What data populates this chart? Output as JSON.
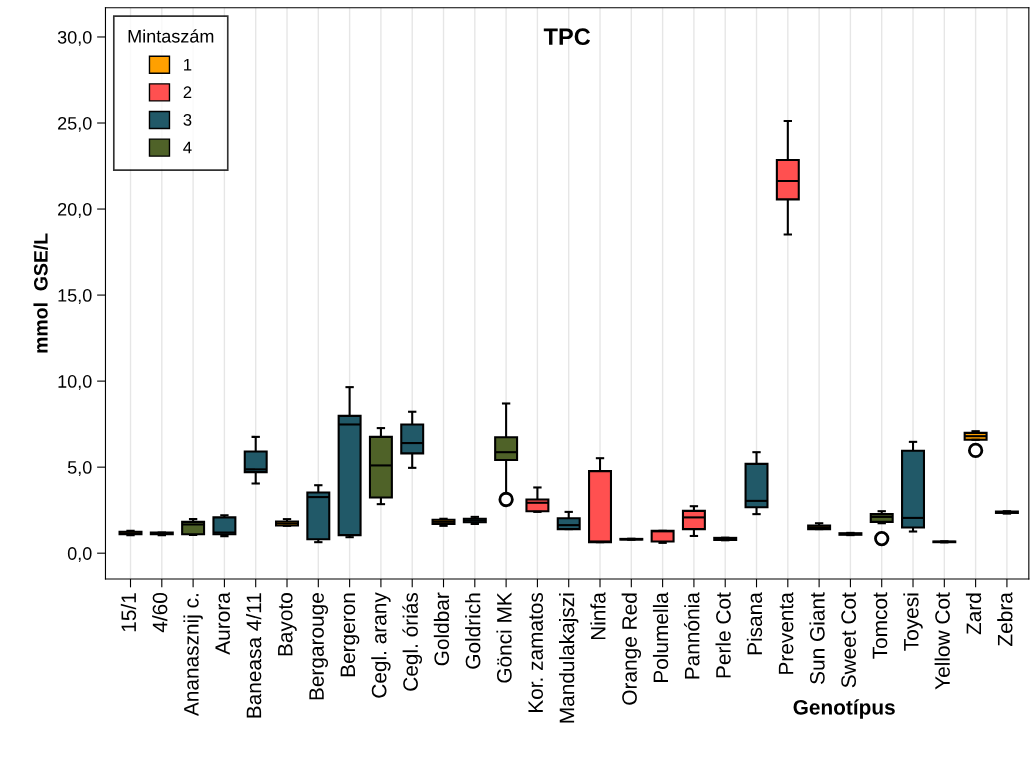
{
  "chart_data": {
    "type": "box",
    "title": "TPC",
    "xlabel": "Genotípus",
    "ylabel": "mmol  GSE/L",
    "legend_title": "Mintaszám",
    "legend": "top left",
    "grid": "x",
    "categories": [
      "15/1",
      "4/60",
      "Ananasznij c.",
      "Aurora",
      "Baneasa 4/11",
      "Bayoto",
      "Bergarouge",
      "Bergeron",
      "Cegl. arany",
      "Cegl. óriás",
      "Goldbar",
      "Goldrich",
      "Gönci MK",
      "Kor. zamatos",
      "Mandulakajszi",
      "Ninfa",
      "Orange Red",
      "Polumella",
      "Pannónia",
      "Perle Cot",
      "Pisana",
      "Preventa",
      "Sun Giant",
      "Sweet Cot",
      "Tomcot",
      "Toyesi",
      "Yellow Cot",
      "Zard",
      "Zebra"
    ],
    "ylim": [
      -1.5,
      31.7
    ],
    "yticks": [
      {
        "value": 0,
        "label": "0,0"
      },
      {
        "value": 5,
        "label": "5,0"
      },
      {
        "value": 10,
        "label": "10,0"
      },
      {
        "value": 15,
        "label": "15,0"
      },
      {
        "value": 20,
        "label": "20,0"
      },
      {
        "value": 25,
        "label": "25,0"
      },
      {
        "value": 30,
        "label": "30,0"
      }
    ],
    "series": [
      {
        "name": "1",
        "color": "#ffa000",
        "boxes": [
          {
            "low": 1.05,
            "q1": 1.1,
            "median": 1.15,
            "q3": 1.25,
            "high": 1.3
          },
          null,
          null,
          null,
          null,
          {
            "low": 1.59,
            "q1": 1.61,
            "median": 1.73,
            "q3": 1.84,
            "high": 1.98
          },
          null,
          null,
          null,
          null,
          {
            "low": 1.59,
            "q1": 1.7,
            "median": 1.82,
            "q3": 1.94,
            "high": 2.0
          },
          null,
          null,
          null,
          null,
          null,
          null,
          null,
          null,
          null,
          null,
          null,
          {
            "low": 1.4,
            "q1": 1.4,
            "median": 1.51,
            "q3": 1.61,
            "high": 1.74
          },
          null,
          null,
          null,
          null,
          {
            "low": 6.59,
            "q1": 6.59,
            "median": 6.8,
            "q3": 6.99,
            "high": 7.09,
            "outliers": [
              5.97
            ]
          },
          null
        ]
      },
      {
        "name": "2",
        "color": "#ff5050",
        "boxes": [
          null,
          null,
          null,
          null,
          null,
          null,
          null,
          null,
          null,
          null,
          null,
          null,
          null,
          {
            "low": 2.4,
            "q1": 2.44,
            "median": 2.93,
            "q3": 3.12,
            "high": 3.82
          },
          null,
          {
            "low": 0.64,
            "q1": 0.64,
            "median": 0.68,
            "q3": 4.77,
            "high": 5.52
          },
          {
            "low": 0.78,
            "q1": 0.79,
            "median": 0.81,
            "q3": 0.83,
            "high": 0.84
          },
          {
            "low": 0.6,
            "q1": 0.68,
            "median": 1.27,
            "q3": 1.3,
            "high": 1.3
          },
          {
            "low": 1.0,
            "q1": 1.4,
            "median": 2.08,
            "q3": 2.46,
            "high": 2.73
          },
          null,
          null,
          {
            "low": 18.52,
            "q1": 20.56,
            "median": 21.63,
            "q3": 22.85,
            "high": 25.12
          },
          null,
          null,
          null,
          null,
          null,
          null,
          null
        ]
      },
      {
        "name": "3",
        "color": "#215968",
        "boxes": [
          null,
          {
            "low": 1.05,
            "q1": 1.1,
            "median": 1.15,
            "q3": 1.2,
            "high": 1.2
          },
          null,
          {
            "low": 0.99,
            "q1": 1.1,
            "median": 1.2,
            "q3": 2.08,
            "high": 2.2
          },
          {
            "low": 4.05,
            "q1": 4.71,
            "median": 4.87,
            "q3": 5.91,
            "high": 6.76
          },
          null,
          {
            "low": 0.64,
            "q1": 0.81,
            "median": 3.26,
            "q3": 3.53,
            "high": 3.95
          },
          {
            "low": 0.93,
            "q1": 1.05,
            "median": 7.48,
            "q3": 7.98,
            "high": 9.65
          },
          null,
          {
            "low": 4.96,
            "q1": 5.8,
            "median": 6.4,
            "q3": 7.48,
            "high": 8.22
          },
          null,
          {
            "low": 1.7,
            "q1": 1.8,
            "median": 1.9,
            "q3": 2.0,
            "high": 2.11
          },
          null,
          null,
          {
            "low": 1.4,
            "q1": 1.4,
            "median": 1.63,
            "q3": 2.03,
            "high": 2.4
          },
          null,
          null,
          null,
          null,
          {
            "low": 0.75,
            "q1": 0.77,
            "median": 0.83,
            "q3": 0.89,
            "high": 0.9
          },
          {
            "low": 2.27,
            "q1": 2.67,
            "median": 3.04,
            "q3": 5.19,
            "high": 5.87
          },
          null,
          null,
          {
            "low": 1.05,
            "q1": 1.07,
            "median": 1.12,
            "q3": 1.16,
            "high": 1.18
          },
          null,
          {
            "low": 1.26,
            "q1": 1.49,
            "median": 2.05,
            "q3": 5.95,
            "high": 6.47
          },
          {
            "low": 0.63,
            "q1": 0.64,
            "median": 0.66,
            "q3": 0.68,
            "high": 0.69
          },
          null,
          {
            "low": 2.3,
            "q1": 2.34,
            "median": 2.38,
            "q3": 2.42,
            "high": 2.44
          }
        ]
      },
      {
        "name": "4",
        "color": "#4f6228",
        "boxes": [
          null,
          null,
          {
            "low": 1.06,
            "q1": 1.1,
            "median": 1.67,
            "q3": 1.82,
            "high": 1.98
          },
          null,
          null,
          null,
          null,
          null,
          {
            "low": 2.85,
            "q1": 3.24,
            "median": 5.1,
            "q3": 6.76,
            "high": 7.27
          },
          null,
          null,
          null,
          {
            "low": 3.37,
            "q1": 5.42,
            "median": 5.87,
            "q3": 6.74,
            "high": 8.7,
            "outliers": [
              3.12
            ]
          },
          null,
          null,
          null,
          null,
          null,
          null,
          null,
          null,
          null,
          null,
          null,
          {
            "low": 1.74,
            "q1": 1.82,
            "median": 2.11,
            "q3": 2.27,
            "high": 2.44,
            "outliers": [
              0.85
            ]
          },
          null,
          null,
          null,
          null
        ]
      }
    ]
  }
}
